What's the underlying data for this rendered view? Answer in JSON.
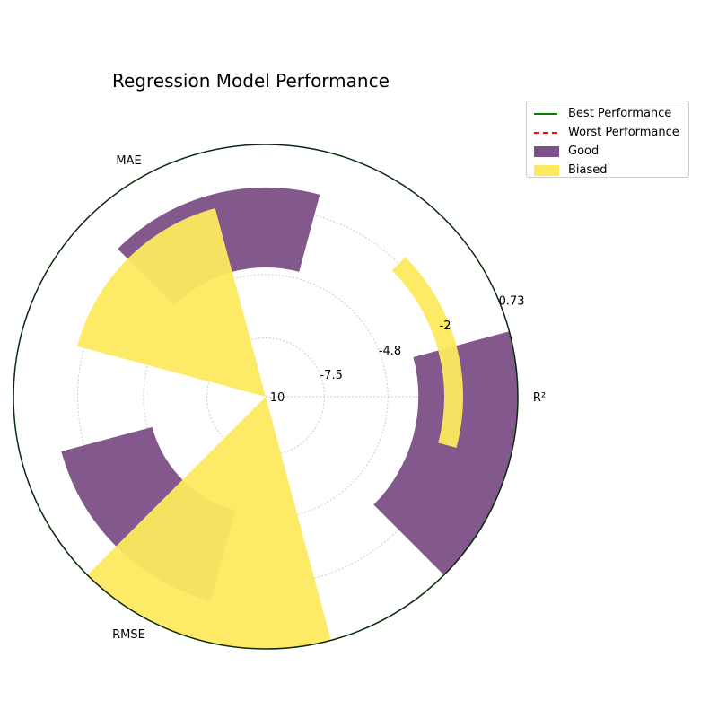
{
  "chart_data": {
    "type": "polar-bar",
    "title": "Regression Model Performance",
    "categories": [
      "R²",
      "MAE",
      "RMSE"
    ],
    "radial_ticks": [
      "-10",
      "-7.5",
      "-4.8",
      "-2",
      "0.73"
    ],
    "rlim": [
      -10,
      0.73
    ],
    "series": [
      {
        "name": "Good",
        "color": "#7b4f87",
        "values": [
          0.73,
          -1.1,
          -1.0
        ],
        "inner": [
          -3.5,
          -4.5,
          -5.0
        ]
      },
      {
        "name": "Biased",
        "color": "#fde95f",
        "values": [
          -1.6,
          -1.7,
          0.73
        ],
        "inner": [
          -2.4,
          -10,
          -10
        ]
      }
    ],
    "reference_lines": [
      {
        "name": "Best Performance",
        "color": "#008000",
        "style": "solid"
      },
      {
        "name": "Worst Performance",
        "color": "#ff0000",
        "style": "dashed"
      }
    ],
    "legend_position": "top-right",
    "grid": true
  }
}
